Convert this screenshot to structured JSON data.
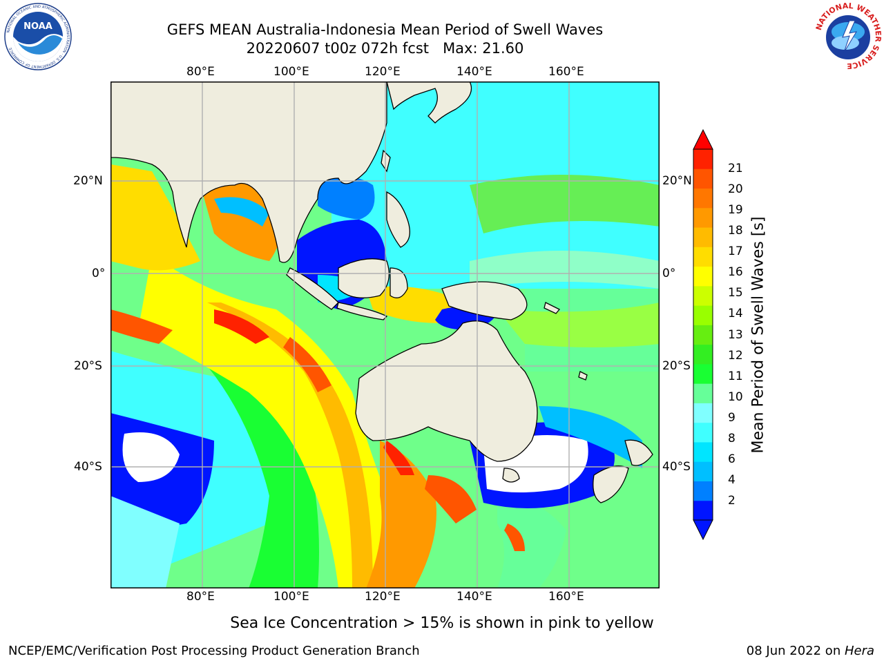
{
  "header": {
    "title_line1": "GEFS MEAN Australia-Indonesia Mean Period of Swell Waves",
    "title_line2": "20220607 t00z 072h fcst   Max: 21.60"
  },
  "logos": {
    "left": "NOAA",
    "left_ring": "NATIONAL OCEANIC AND ATMOSPHERIC ADMINISTRATION · U.S. DEPARTMENT OF COMMERCE",
    "right_ring": "NATIONAL WEATHER SERVICE"
  },
  "axes": {
    "lon_labels": [
      "80°E",
      "100°E",
      "120°E",
      "140°E",
      "160°E"
    ],
    "lat_labels": [
      "20°N",
      "0°",
      "20°S",
      "40°S"
    ]
  },
  "colorbar": {
    "label": "Mean Period of Swell Waves [s]",
    "ticks": [
      "2",
      "4",
      "6",
      "8",
      "9",
      "10",
      "11",
      "12",
      "13",
      "14",
      "15",
      "16",
      "17",
      "18",
      "19",
      "20",
      "21"
    ],
    "colors": [
      "#0015ff",
      "#0080ff",
      "#00bfff",
      "#00e5ff",
      "#40ffff",
      "#80ffff",
      "#66ff99",
      "#19ff33",
      "#33ee22",
      "#66ee11",
      "#99ff00",
      "#ccff00",
      "#ffff00",
      "#ffdd00",
      "#ffbb00",
      "#ff9900",
      "#ff7700",
      "#ff5500",
      "#ff2200"
    ],
    "extend_low": "#0015ff",
    "extend_high": "#ff0000"
  },
  "colors": {
    "land": "#efedde",
    "ice": "#ffffff",
    "grid": "#b0b0b0"
  },
  "caption": "Sea Ice Concentration > 15% is shown in pink to yellow",
  "footer": {
    "left": "NCEP/EMC/Verification Post Processing Product Generation Branch",
    "right_date": "08 Jun 2022 on ",
    "right_host": "Hera"
  }
}
